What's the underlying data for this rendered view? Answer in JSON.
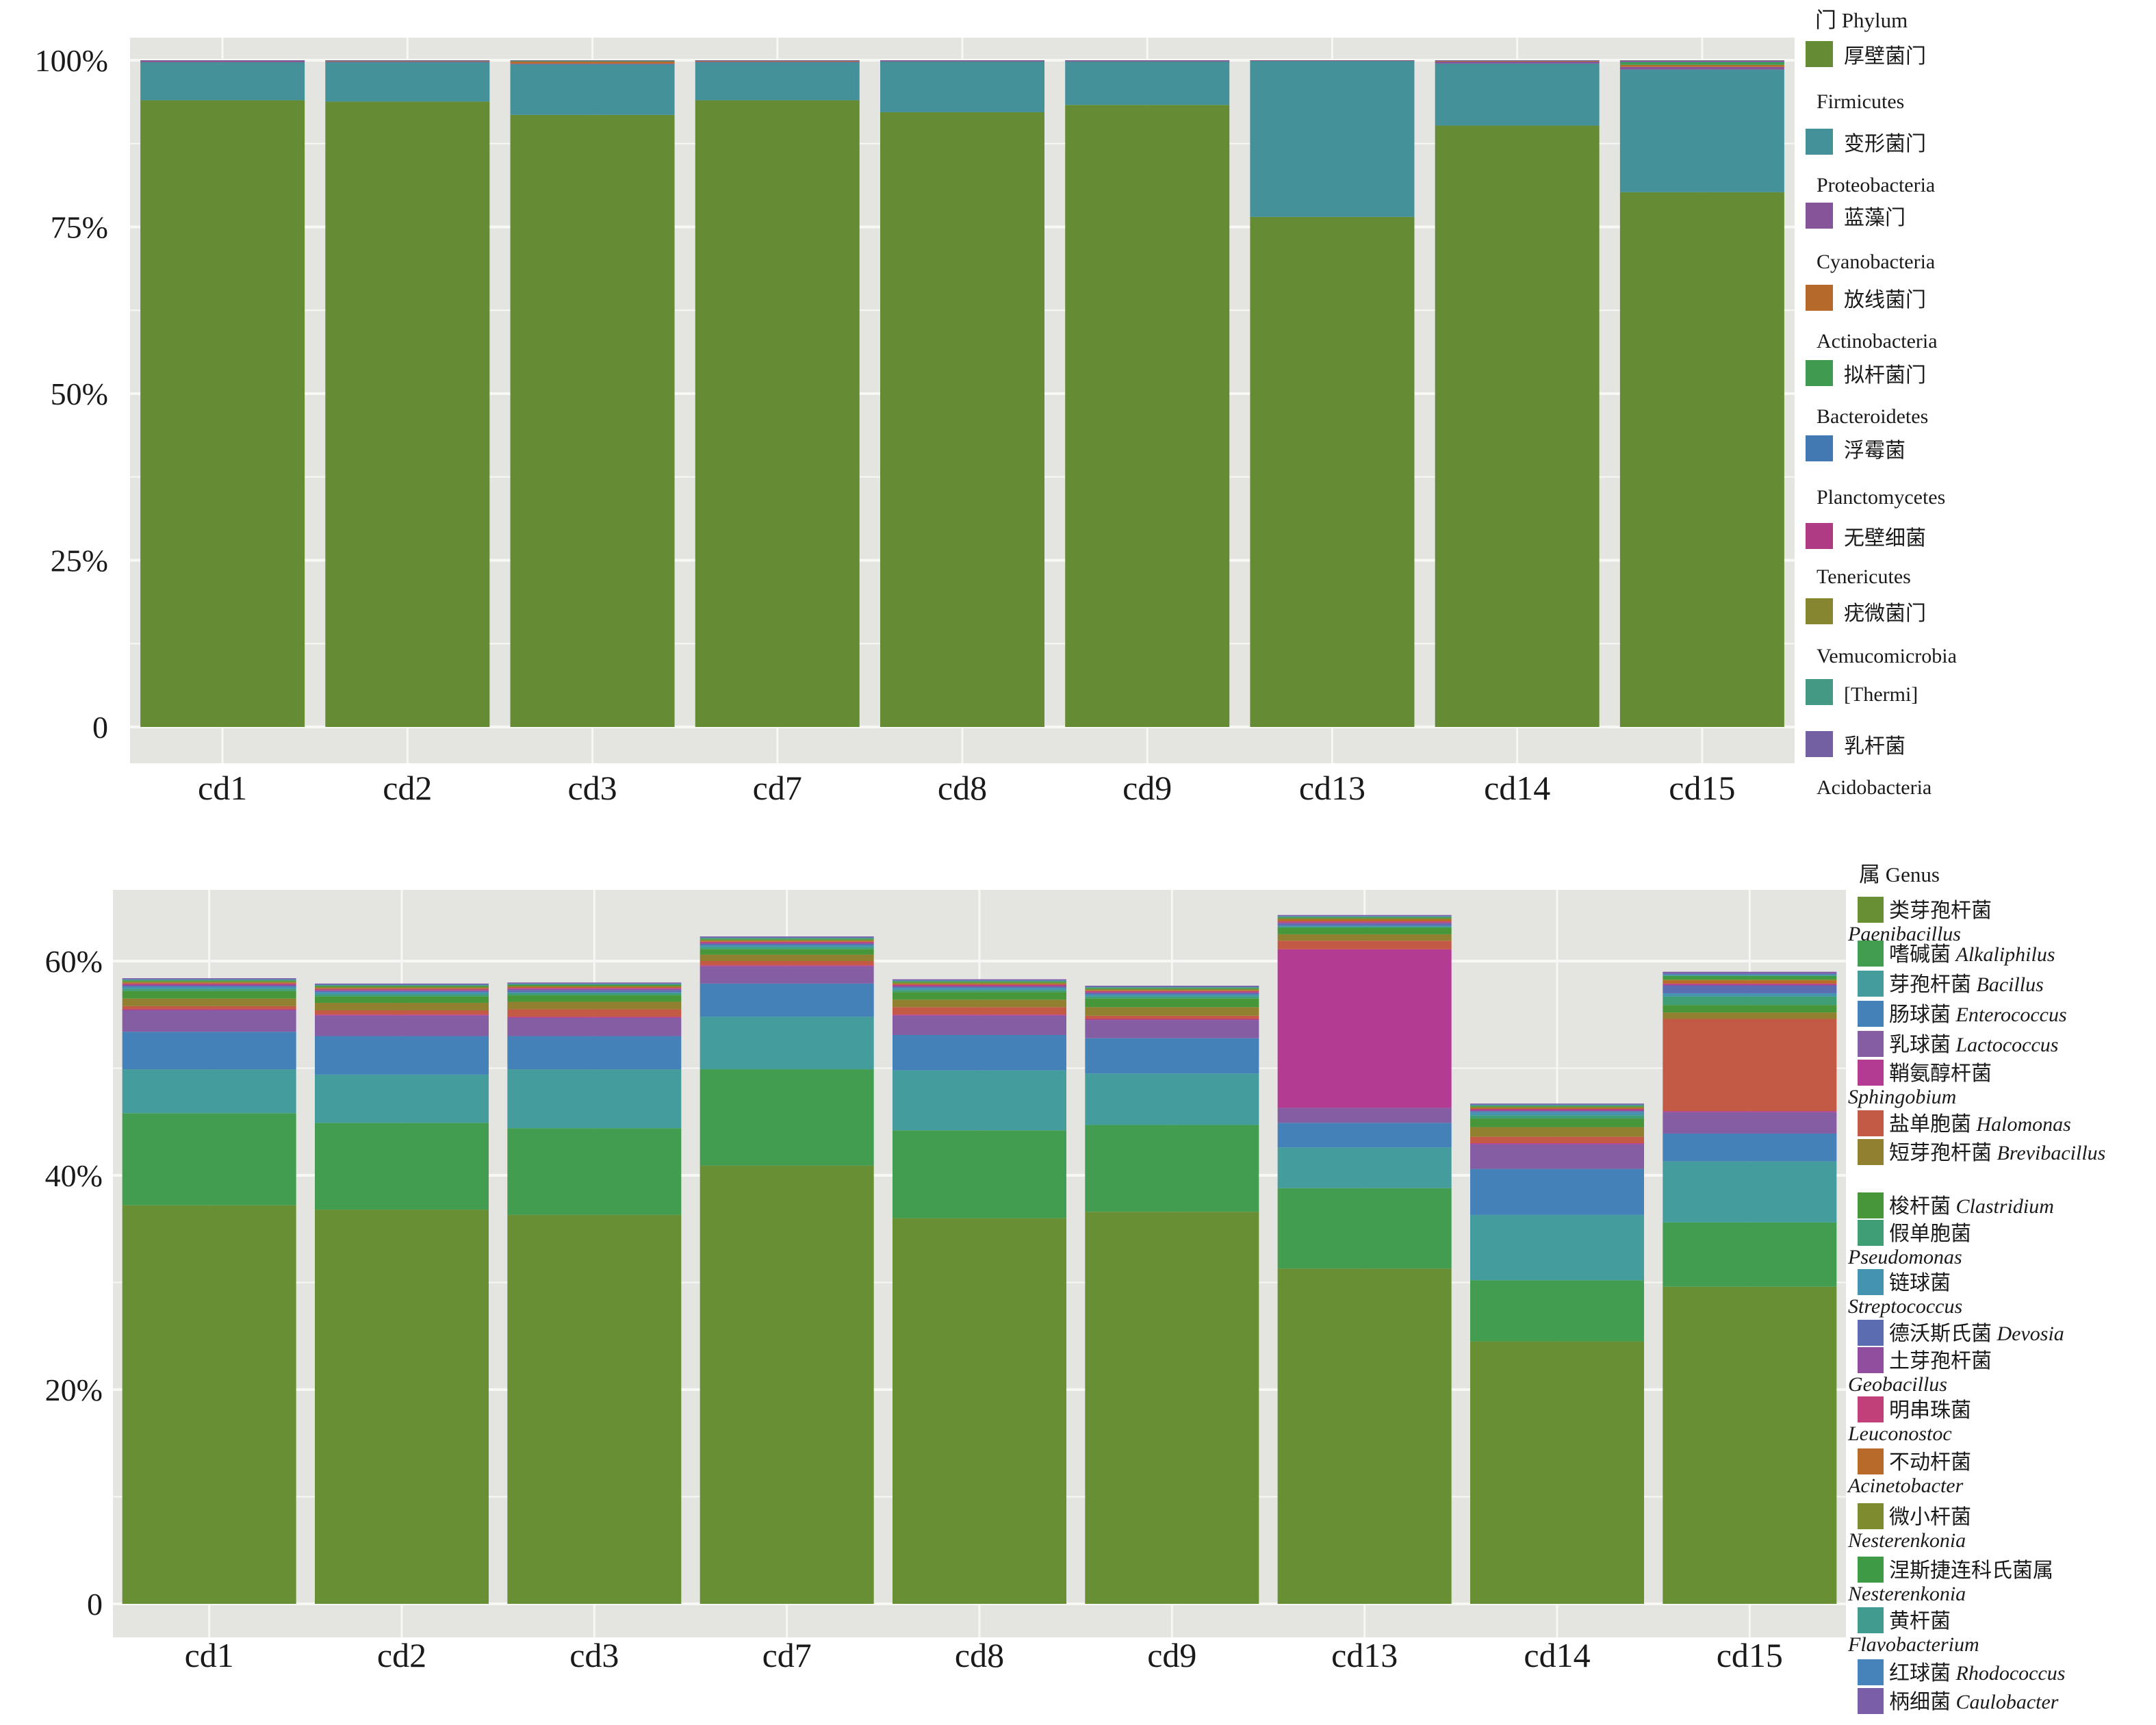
{
  "chart_data": [
    {
      "type": "bar",
      "stacked": true,
      "title": "",
      "xlabel": "",
      "ylabel": "",
      "ylim": [
        0,
        100
      ],
      "yticks": [
        0,
        25,
        50,
        75,
        100
      ],
      "ytick_labels": [
        "0",
        "25%",
        "50%",
        "75%",
        "100%"
      ],
      "grid": true,
      "legend_placement": "right",
      "legend_title": "门 Phylum",
      "categories": [
        "cd1",
        "cd2",
        "cd3",
        "cd7",
        "cd8",
        "cd9",
        "cd13",
        "cd14",
        "cd15"
      ],
      "series": [
        {
          "name": "厚壁菌门 Firmicutes",
          "color": "#668B35",
          "values": [
            94.0,
            93.8,
            91.8,
            94.0,
            92.2,
            93.3,
            76.5,
            90.2,
            80.2
          ]
        },
        {
          "name": "变形菌门 Proteobacteria",
          "color": "#44919A",
          "values": [
            5.7,
            5.9,
            7.6,
            5.7,
            7.6,
            6.5,
            23.4,
            9.3,
            18.4
          ]
        },
        {
          "name": "蓝藻门 Cyanobacteria",
          "color": "#865599",
          "values": [
            0.2,
            0.1,
            0.1,
            0.1,
            0.1,
            0.1,
            0.05,
            0.3,
            0.4
          ]
        },
        {
          "name": "放线菌门 Actinobacteria",
          "color": "#B56A2C",
          "values": [
            0.05,
            0.1,
            0.3,
            0.1,
            0.05,
            0.05,
            0.02,
            0.1,
            0.3
          ]
        },
        {
          "name": "拟杆菌门 Bacteroidetes",
          "color": "#409B50",
          "values": [
            0.02,
            0.03,
            0.1,
            0.05,
            0.02,
            0.02,
            0.01,
            0.05,
            0.4
          ]
        },
        {
          "name": "浮霉菌 Planctomycetes",
          "color": "#4379B2",
          "values": [
            0.01,
            0.02,
            0.03,
            0.02,
            0.01,
            0.01,
            0.01,
            0.02,
            0.1
          ]
        },
        {
          "name": "无壁细菌 Tenericutes",
          "color": "#B03B85",
          "values": [
            0.01,
            0.03,
            0.02,
            0.01,
            0.01,
            0.01,
            0.01,
            0.02,
            0.1
          ]
        },
        {
          "name": "疣微菌门 Vemucomicrobia",
          "color": "#868530",
          "values": [
            0.0,
            0.0,
            0.02,
            0.0,
            0.0,
            0.0,
            0.0,
            0.0,
            0.05
          ]
        },
        {
          "name": "[Thermi]",
          "color": "#439984",
          "values": [
            0.0,
            0.01,
            0.02,
            0.01,
            0.0,
            0.0,
            0.0,
            0.0,
            0.03
          ]
        },
        {
          "name": "乳杆菌 Acidobacteria",
          "color": "#7260A3",
          "values": [
            0.01,
            0.01,
            0.01,
            0.01,
            0.01,
            0.01,
            0.0,
            0.01,
            0.02
          ]
        }
      ]
    },
    {
      "type": "bar",
      "stacked": true,
      "title": "",
      "xlabel": "",
      "ylabel": "",
      "ylim": [
        0,
        66
      ],
      "yticks": [
        0,
        20,
        40,
        60
      ],
      "ytick_labels": [
        "0",
        "20%",
        "40%",
        "60%"
      ],
      "grid": true,
      "legend_placement": "right",
      "legend_title": "属 Genus",
      "categories": [
        "cd1",
        "cd2",
        "cd3",
        "cd7",
        "cd8",
        "cd9",
        "cd13",
        "cd14",
        "cd15"
      ],
      "series": [
        {
          "name": "类芽孢杆菌 Paenibacillus",
          "color": "#688F34",
          "values": [
            37.2,
            36.8,
            36.3,
            40.9,
            36.0,
            36.6,
            31.3,
            24.5,
            29.6
          ]
        },
        {
          "name": "嗜碱菌 Alkaliphilus",
          "color": "#439D51",
          "values": [
            8.6,
            8.1,
            8.1,
            9.0,
            8.2,
            8.1,
            7.5,
            5.7,
            6.0
          ]
        },
        {
          "name": "芽孢杆菌 Bacillus",
          "color": "#449C9C",
          "values": [
            4.1,
            4.5,
            5.5,
            4.9,
            5.6,
            4.8,
            3.8,
            6.1,
            5.7
          ]
        },
        {
          "name": "肠球菌 Enterococcus",
          "color": "#4381B8",
          "values": [
            3.5,
            3.6,
            3.1,
            3.1,
            3.3,
            3.3,
            2.3,
            4.3,
            2.6
          ]
        },
        {
          "name": "乳球菌 Lactococcus",
          "color": "#855DA2",
          "values": [
            2.0,
            1.9,
            1.7,
            1.6,
            1.8,
            1.7,
            1.4,
            2.3,
            2.0
          ]
        },
        {
          "name": "鞘氨醇杆菌 Sphingobium",
          "color": "#B33B92",
          "values": [
            0.1,
            0.1,
            0.1,
            0.1,
            0.1,
            0.1,
            14.8,
            0.1,
            0.1
          ]
        },
        {
          "name": "盐单胞菌 Halomonas",
          "color": "#C35A45",
          "values": [
            0.3,
            0.4,
            0.7,
            0.4,
            0.7,
            0.3,
            0.8,
            0.6,
            8.6
          ]
        },
        {
          "name": "短芽孢杆菌 Brevibacillus",
          "color": "#908030",
          "values": [
            0.7,
            0.7,
            0.7,
            0.6,
            0.7,
            0.8,
            0.6,
            0.9,
            0.6
          ]
        },
        {
          "name": "梭杆菌 Clastridium",
          "color": "#47963A",
          "values": [
            0.7,
            0.6,
            0.6,
            0.5,
            0.7,
            0.8,
            0.6,
            0.8,
            0.7
          ]
        },
        {
          "name": "假单胞菌 Pseudomonas",
          "color": "#3F9E76",
          "values": [
            0.2,
            0.2,
            0.2,
            0.2,
            0.2,
            0.2,
            0.1,
            0.3,
            0.8
          ]
        },
        {
          "name": "链球菌 Streptococcus",
          "color": "#4493B1",
          "values": [
            0.2,
            0.2,
            0.1,
            0.2,
            0.2,
            0.2,
            0.1,
            0.3,
            0.3
          ]
        },
        {
          "name": "德沃斯氏菌 Devosia",
          "color": "#5B6DB0",
          "values": [
            0.1,
            0.1,
            0.2,
            0.1,
            0.1,
            0.1,
            0.2,
            0.1,
            0.7
          ]
        },
        {
          "name": "土芽孢杆菌 Geobacillus",
          "color": "#924E9E",
          "values": [
            0.1,
            0.1,
            0.1,
            0.1,
            0.1,
            0.1,
            0.1,
            0.1,
            0.1
          ]
        },
        {
          "name": "明串珠菌 Leuconostoc",
          "color": "#C2407A",
          "values": [
            0.1,
            0.1,
            0.1,
            0.1,
            0.1,
            0.1,
            0.1,
            0.1,
            0.1
          ]
        },
        {
          "name": "不动杆菌 Acinetobacter",
          "color": "#B86A2A",
          "values": [
            0.1,
            0.1,
            0.1,
            0.1,
            0.1,
            0.1,
            0.2,
            0.1,
            0.3
          ]
        },
        {
          "name": "微小杆菌 Nesterenkonia",
          "color": "#7E8B2E",
          "values": [
            0.1,
            0.1,
            0.1,
            0.1,
            0.1,
            0.1,
            0.1,
            0.1,
            0.1
          ]
        },
        {
          "name": "涅斯捷连科氏菌属 Nesterenkonia",
          "color": "#3E9A45",
          "values": [
            0.1,
            0.1,
            0.1,
            0.1,
            0.1,
            0.1,
            0.1,
            0.1,
            0.3
          ]
        },
        {
          "name": "黄杆菌 Flavobacterium",
          "color": "#419B8E",
          "values": [
            0.05,
            0.05,
            0.05,
            0.05,
            0.05,
            0.05,
            0.05,
            0.05,
            0.1
          ]
        },
        {
          "name": "红球菌 Rhodococcus",
          "color": "#4583BA",
          "values": [
            0.05,
            0.05,
            0.05,
            0.05,
            0.05,
            0.05,
            0.05,
            0.05,
            0.1
          ]
        },
        {
          "name": "柄细菌 Caulobacter",
          "color": "#7A5EA8",
          "values": [
            0.1,
            0.1,
            0.1,
            0.1,
            0.1,
            0.1,
            0.1,
            0.1,
            0.2
          ]
        }
      ]
    }
  ],
  "legends": {
    "phylum": {
      "title": "门 Phylum",
      "entries": [
        {
          "swatch_color": "#668B35",
          "cn": "厚壁菌门",
          "en_below": "Firmicutes"
        },
        {
          "swatch_color": "#44919A",
          "cn": "变形菌门",
          "en_below": "Proteobacteria"
        },
        {
          "swatch_color": "#865599",
          "cn": "蓝藻门",
          "en_below": "Cyanobacteria"
        },
        {
          "swatch_color": "#B56A2C",
          "cn": "放线菌门",
          "en_below": "Actinobacteria"
        },
        {
          "swatch_color": "#409B50",
          "cn": "拟杆菌门",
          "en_below": "Bacteroidetes"
        },
        {
          "swatch_color": "#4379B2",
          "cn": "浮霉菌",
          "en_below": "Planctomycetes"
        },
        {
          "swatch_color": "#B03B85",
          "cn": "无壁细菌",
          "en_below": "Tenericutes"
        },
        {
          "swatch_color": "#868530",
          "cn": "疣微菌门",
          "en_below": "Vemucomicrobia"
        },
        {
          "swatch_color": "#439984",
          "cn": "[Thermi]",
          "en_below": ""
        },
        {
          "swatch_color": "#7260A3",
          "cn": "乳杆菌",
          "en_below": "Acidobacteria"
        }
      ]
    },
    "genus": {
      "title": "属 Genus",
      "entries": [
        {
          "swatch_color": "#688F34",
          "cn": "类芽孢杆菌",
          "it_inline": "",
          "it_below": "Paenibacillus"
        },
        {
          "swatch_color": "#439D51",
          "cn": "嗜碱菌",
          "it_inline": "Alkaliphilus",
          "it_below": ""
        },
        {
          "swatch_color": "#449C9C",
          "cn": "芽孢杆菌",
          "it_inline": "Bacillus",
          "it_below": ""
        },
        {
          "swatch_color": "#4381B8",
          "cn": "肠球菌",
          "it_inline": "Enterococcus",
          "it_below": ""
        },
        {
          "swatch_color": "#855DA2",
          "cn": "乳球菌",
          "it_inline": "Lactococcus",
          "it_below": ""
        },
        {
          "swatch_color": "#B33B92",
          "cn": "鞘氨醇杆菌",
          "it_inline": "",
          "it_below": "Sphingobium"
        },
        {
          "swatch_color": "#C35A45",
          "cn": "盐单胞菌",
          "it_inline": "Halomonas",
          "it_below": ""
        },
        {
          "swatch_color": "#908030",
          "cn": "短芽孢杆菌",
          "it_inline": "Brevibacillus",
          "it_below": ""
        },
        {
          "swatch_color": "#47963A",
          "cn": "梭杆菌",
          "it_inline": "Clastridium",
          "it_below": ""
        },
        {
          "swatch_color": "#3F9E76",
          "cn": "假单胞菌",
          "it_inline": "",
          "it_below": "Pseudomonas"
        },
        {
          "swatch_color": "#4493B1",
          "cn": "链球菌",
          "it_inline": "",
          "it_below": "Streptococcus"
        },
        {
          "swatch_color": "#5B6DB0",
          "cn": "德沃斯氏菌",
          "it_inline": "Devosia",
          "it_below": ""
        },
        {
          "swatch_color": "#924E9E",
          "cn": "土芽孢杆菌",
          "it_inline": "",
          "it_below": "Geobacillus"
        },
        {
          "swatch_color": "#C2407A",
          "cn": "明串珠菌",
          "it_inline": "",
          "it_below": "Leuconostoc"
        },
        {
          "swatch_color": "#B86A2A",
          "cn": "不动杆菌",
          "it_inline": "",
          "it_below": "Acinetobacter"
        },
        {
          "swatch_color": "#7E8B2E",
          "cn": "微小杆菌",
          "it_inline": "",
          "it_below": "Nesterenkonia"
        },
        {
          "swatch_color": "#3E9A45",
          "cn": "涅斯捷连科氏菌属",
          "it_inline": "",
          "it_below": "Nesterenkonia"
        },
        {
          "swatch_color": "#419B8E",
          "cn": "黄杆菌",
          "it_inline": "",
          "it_below": "Flavobacterium"
        },
        {
          "swatch_color": "#4583BA",
          "cn": "红球菌",
          "it_inline": "Rhodococcus",
          "it_below": ""
        },
        {
          "swatch_color": "#7A5EA8",
          "cn": "柄细菌",
          "it_inline": "Caulobacter",
          "it_below": ""
        }
      ]
    }
  },
  "colors": {
    "panel_background": "#E4E4E0",
    "gridline": "#F7F7F5",
    "text": "#1a1a1a"
  }
}
